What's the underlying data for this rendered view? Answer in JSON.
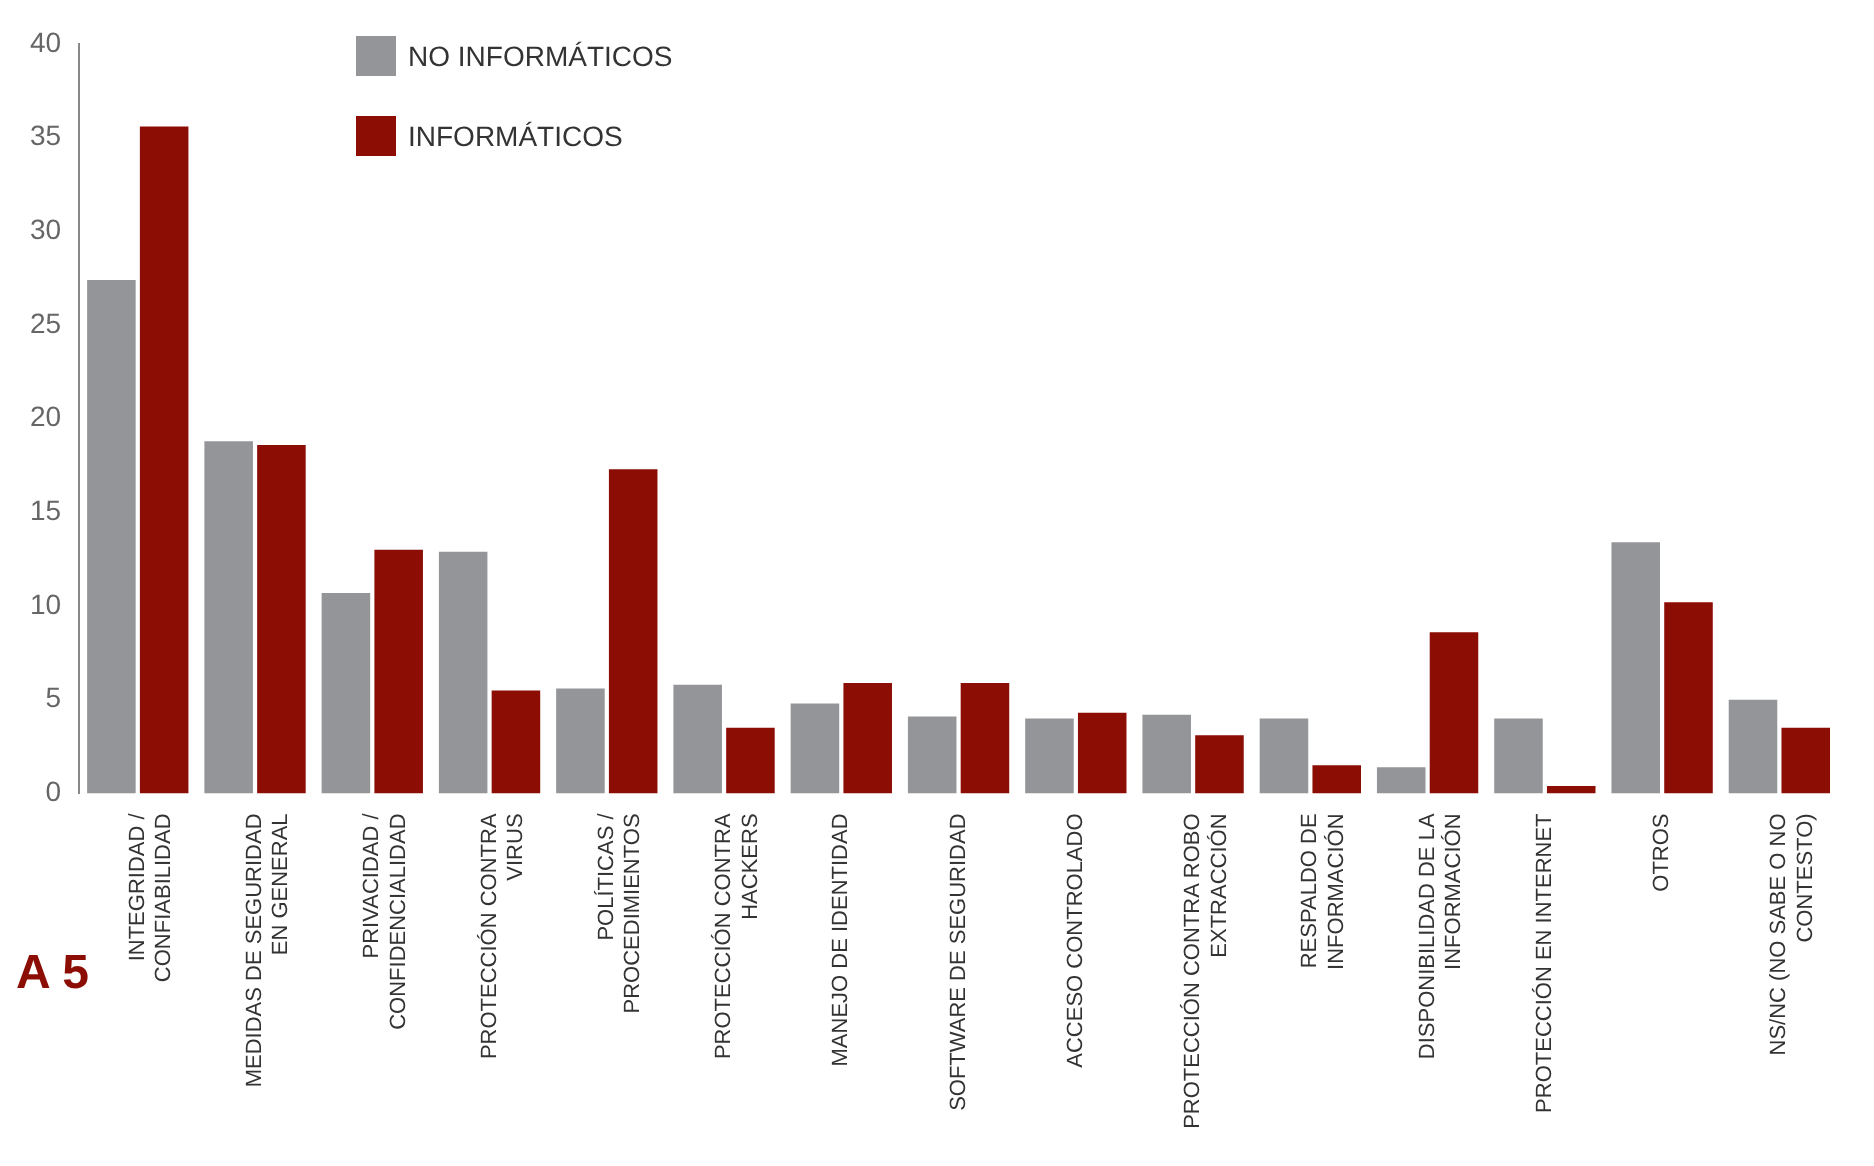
{
  "chart_data": {
    "type": "bar",
    "categories": [
      "INTEGRIDAD / CONFIABILIDAD",
      "MEDIDAS DE SEGURIDAD EN GENERAL",
      "PRIVACIDAD / CONFIDENCIALIDAD",
      "PROTECCIÓN CONTRA VIRUS",
      "POLÍTICAS / PROCEDIMIENTOS",
      "PROTECCIÓN CONTRA HACKERS",
      "MANEJO DE IDENTIDAD",
      "SOFTWARE DE SEGURIDAD",
      "ACCESO CONTROLADO",
      "PROTECCIÓN CONTRA ROBO EXTRACCIÓN",
      "RESPALDO DE INFORMACIÓN",
      "DISPONIBILIDAD DE LA INFORMACIÓN",
      "PROTECCIÓN EN INTERNET",
      "OTROS",
      "NS/NC (NO SABE O NO CONTESTO)"
    ],
    "series": [
      {
        "name": "NO INFORMÁTICOS",
        "color": "#939598",
        "values": [
          27.4,
          18.8,
          10.7,
          12.9,
          5.6,
          5.8,
          4.8,
          4.1,
          4.0,
          4.2,
          4.0,
          1.4,
          4.0,
          13.4,
          5.0
        ]
      },
      {
        "name": "INFORMÁTICOS",
        "color": "#8b0d04",
        "values": [
          35.6,
          18.6,
          13.0,
          5.5,
          17.3,
          3.5,
          5.9,
          5.9,
          4.3,
          3.1,
          1.5,
          8.6,
          0.4,
          10.2,
          3.5
        ]
      }
    ],
    "ylim": [
      0,
      40
    ],
    "yticks": [
      0,
      5,
      10,
      15,
      20,
      25,
      30,
      35,
      40
    ],
    "grid": false,
    "legend": "top left",
    "annotations": [
      "A 5"
    ]
  }
}
